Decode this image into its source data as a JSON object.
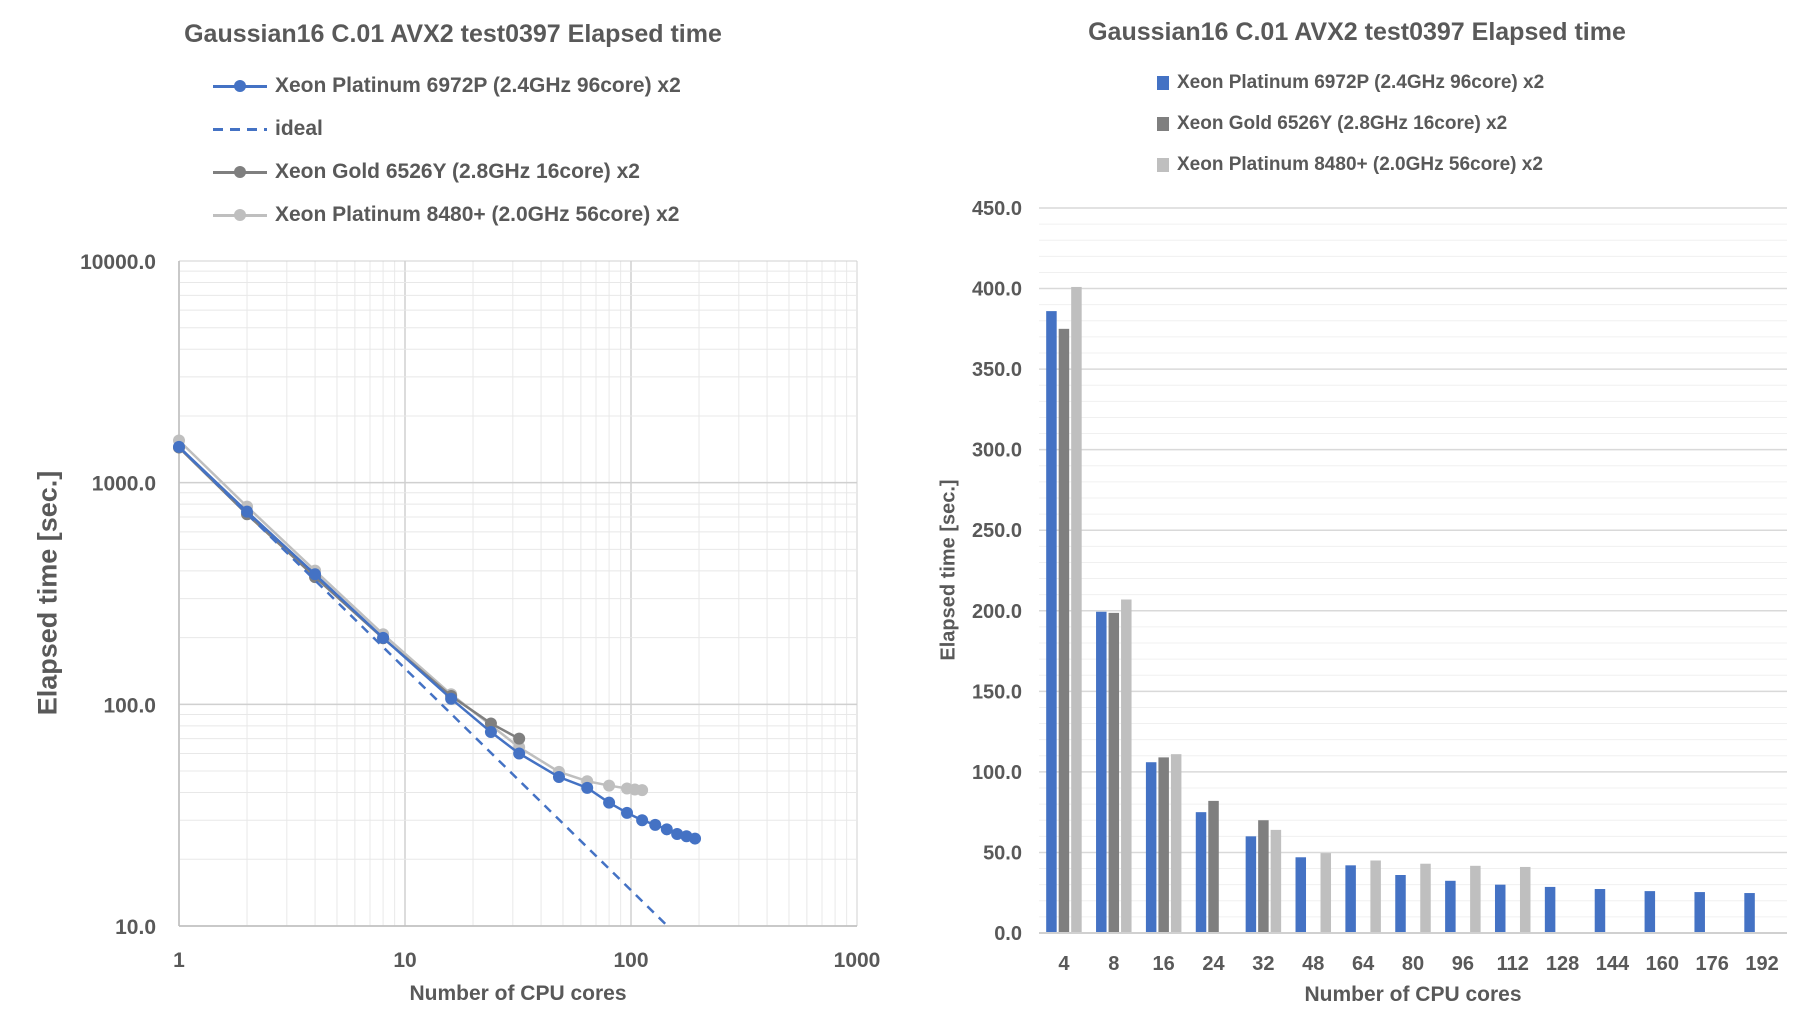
{
  "chart_data": [
    {
      "type": "line",
      "title": "Gaussian16 C.01 AVX2 test0397 Elapsed time",
      "xlabel": "Number of CPU cores",
      "ylabel": "Elapsed time [sec.]",
      "xscale": "log",
      "yscale": "log",
      "xlim": [
        1,
        1000
      ],
      "ylim": [
        10,
        10000
      ],
      "xticks": [
        "1",
        "10",
        "100",
        "1000"
      ],
      "yticks": [
        "10.0",
        "100.0",
        "1000.0",
        "10000.0"
      ],
      "grid": true,
      "legend": "top-left",
      "series": [
        {
          "name": "Xeon Platinum 6972P (2.4GHz 96core) x2",
          "color": "#4472C4",
          "style": "solid-markers",
          "x": [
            1,
            2,
            4,
            8,
            16,
            24,
            32,
            48,
            64,
            80,
            96,
            112,
            128,
            144,
            160,
            176,
            192
          ],
          "y": [
            1450,
            740,
            386,
            199.4,
            106,
            75,
            60,
            47,
            42,
            36,
            32.4,
            30,
            28.6,
            27.3,
            26,
            25.4,
            24.8
          ]
        },
        {
          "name": "ideal",
          "color": "#4472C4",
          "style": "dashed",
          "x": [
            1,
            145
          ],
          "y": [
            1450,
            10
          ]
        },
        {
          "name": "Xeon Gold 6526Y (2.8GHz 16core) x2",
          "color": "#7F7F7F",
          "style": "solid-markers",
          "x": [
            1,
            2,
            4,
            8,
            16,
            24,
            32
          ],
          "y": [
            1440,
            720,
            375,
            198.7,
            109,
            82,
            70
          ]
        },
        {
          "name": "Xeon Platinum 8480+ (2.0GHz 56core) x2",
          "color": "#BFBFBF",
          "style": "solid-markers",
          "x": [
            1,
            2,
            4,
            8,
            16,
            32,
            48,
            64,
            80,
            96,
            104,
            112
          ],
          "y": [
            1550,
            780,
            401,
            207,
            111,
            64,
            49.6,
            45,
            43,
            41.7,
            41.3,
            41
          ]
        }
      ]
    },
    {
      "type": "bar",
      "title": "Gaussian16 C.01 AVX2 test0397 Elapsed time",
      "xlabel": "Number of CPU cores",
      "ylabel": "Elapsed time [sec.]",
      "ylim": [
        0,
        450
      ],
      "yticks": [
        "0.0",
        "50.0",
        "100.0",
        "150.0",
        "200.0",
        "250.0",
        "300.0",
        "350.0",
        "400.0",
        "450.0"
      ],
      "grid": true,
      "legend": "top-left",
      "categories": [
        "4",
        "8",
        "16",
        "24",
        "32",
        "48",
        "64",
        "80",
        "96",
        "112",
        "128",
        "144",
        "160",
        "176",
        "192"
      ],
      "series": [
        {
          "name": "Xeon Platinum 6972P (2.4GHz 96core) x2",
          "color": "#4472C4",
          "values": [
            386,
            199.4,
            106,
            75,
            60,
            47,
            42,
            36,
            32.4,
            30,
            28.6,
            27.3,
            26,
            25.4,
            24.8
          ]
        },
        {
          "name": "Xeon Gold 6526Y (2.8GHz 16core) x2",
          "color": "#7F7F7F",
          "values": [
            375,
            198.7,
            109,
            82,
            70,
            null,
            null,
            null,
            null,
            null,
            null,
            null,
            null,
            null,
            null
          ]
        },
        {
          "name": "Xeon Platinum 8480+ (2.0GHz 56core) x2",
          "color": "#BFBFBF",
          "values": [
            401,
            207,
            111,
            null,
            64,
            49.6,
            45,
            43,
            41.7,
            41,
            null,
            null,
            null,
            null,
            null
          ]
        }
      ]
    }
  ]
}
